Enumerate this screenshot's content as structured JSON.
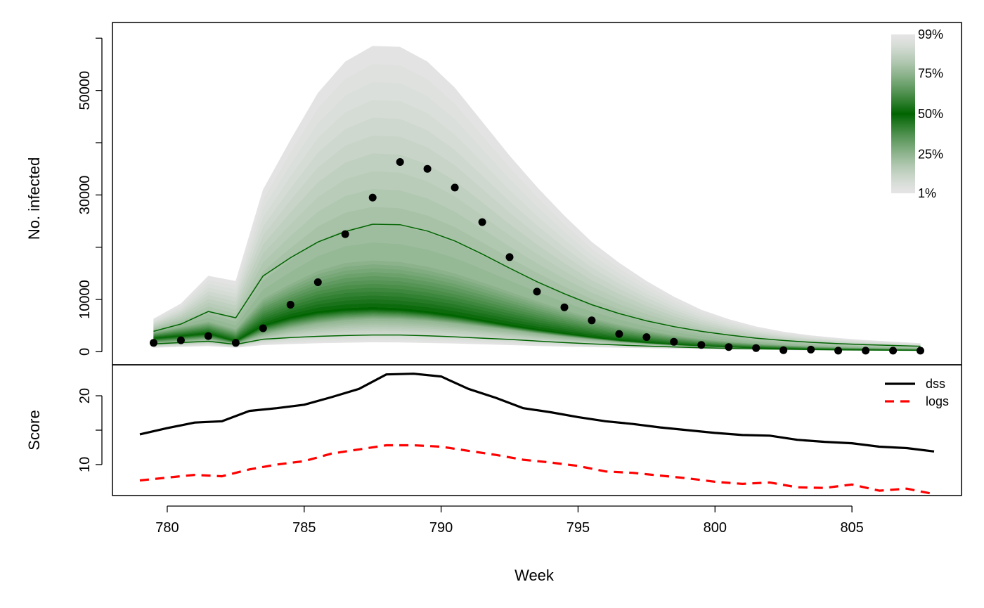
{
  "chart_data": [
    {
      "type": "area",
      "panel": "top",
      "ylabel": "No. infected",
      "xlim": [
        778,
        809
      ],
      "ylim": [
        -2500,
        63000
      ],
      "y_ticks": [
        0,
        10000,
        20000,
        30000,
        40000,
        50000,
        60000
      ],
      "y_tick_labels": [
        "0",
        "10000",
        "",
        "30000",
        "",
        "50000",
        ""
      ],
      "x": [
        779.5,
        780.5,
        781.5,
        782.5,
        783.5,
        784.5,
        785.5,
        786.5,
        787.5,
        788.5,
        789.5,
        790.5,
        791.5,
        792.5,
        793.5,
        794.5,
        795.5,
        796.5,
        797.5,
        798.5,
        799.5,
        800.5,
        801.5,
        802.5,
        803.5,
        804.5,
        805.5,
        806.5,
        807.5
      ],
      "fan": {
        "colors": [
          "#e4e4e4",
          "#006400"
        ],
        "q01": [
          800,
          950,
          1100,
          800,
          1300,
          1500,
          1650,
          1750,
          1850,
          1800,
          1700,
          1600,
          1450,
          1300,
          1150,
          1000,
          900,
          800,
          700,
          600,
          520,
          450,
          400,
          350,
          300,
          270,
          240,
          220,
          200
        ],
        "q25": [
          1600,
          2000,
          2400,
          1500,
          3300,
          4500,
          5400,
          6000,
          6300,
          6200,
          5900,
          5400,
          4800,
          4200,
          3500,
          2900,
          2400,
          1900,
          1550,
          1250,
          1000,
          820,
          680,
          560,
          470,
          400,
          340,
          290,
          250
        ],
        "q50": [
          2600,
          3000,
          3500,
          2000,
          5000,
          6500,
          7500,
          8000,
          8200,
          8000,
          7500,
          6800,
          5900,
          5000,
          4200,
          3500,
          2800,
          2200,
          1750,
          1400,
          1120,
          900,
          740,
          610,
          510,
          430,
          370,
          320,
          280
        ],
        "q75": [
          3800,
          4800,
          5800,
          4300,
          10200,
          13000,
          15500,
          17000,
          17500,
          17200,
          16300,
          15000,
          13300,
          11500,
          9700,
          8000,
          6500,
          5200,
          4100,
          3200,
          2500,
          2000,
          1600,
          1300,
          1050,
          900,
          780,
          680,
          600
        ],
        "q99": [
          6300,
          9200,
          14500,
          13500,
          31000,
          40500,
          49500,
          55500,
          58500,
          58300,
          55500,
          50500,
          44000,
          37500,
          31500,
          26000,
          21000,
          17000,
          13500,
          10500,
          8000,
          6200,
          4800,
          3800,
          3100,
          2600,
          2200,
          1900,
          1600
        ],
        "legend_labels": [
          "99%",
          "75%",
          "50%",
          "25%",
          "1%"
        ],
        "legend_levels": [
          0.99,
          0.75,
          0.5,
          0.25,
          0.01
        ]
      },
      "interval_lines": {
        "color": "#006400",
        "lower": [
          1500,
          1750,
          2000,
          1400,
          2400,
          2700,
          2950,
          3100,
          3200,
          3200,
          3050,
          2850,
          2600,
          2350,
          2050,
          1750,
          1500,
          1280,
          1080,
          910,
          770,
          650,
          560,
          480,
          420,
          370,
          330,
          300,
          270
        ],
        "upper": [
          3900,
          5300,
          7700,
          6500,
          14500,
          18000,
          21000,
          23000,
          24400,
          24300,
          23100,
          21200,
          18700,
          16000,
          13400,
          11100,
          9000,
          7300,
          5900,
          4800,
          3900,
          3200,
          2600,
          2150,
          1800,
          1550,
          1350,
          1200,
          1050
        ]
      },
      "observed": {
        "color": "#000000",
        "y": [
          1700,
          2200,
          3000,
          1700,
          4500,
          9000,
          13300,
          22500,
          29500,
          36300,
          35000,
          31400,
          24800,
          18100,
          11500,
          8500,
          6000,
          3400,
          2800,
          1900,
          1300,
          900,
          700,
          300,
          400,
          200,
          200,
          200,
          200,
          200
        ]
      }
    },
    {
      "type": "line",
      "panel": "bottom",
      "xlabel": "Week",
      "ylabel": "Score",
      "xlim": [
        778,
        809
      ],
      "ylim": [
        5.5,
        24.5
      ],
      "x_ticks": [
        780,
        785,
        790,
        795,
        800,
        805
      ],
      "x_tick_labels": [
        "780",
        "785",
        "790",
        "795",
        "800",
        "805"
      ],
      "y_ticks": [
        10,
        15,
        20
      ],
      "y_tick_labels": [
        "10",
        "",
        "20"
      ],
      "x": [
        779,
        780,
        781,
        782,
        783,
        784,
        785,
        786,
        787,
        788,
        789,
        790,
        791,
        792,
        793,
        794,
        795,
        796,
        797,
        798,
        799,
        800,
        801,
        802,
        803,
        804,
        805,
        806,
        807,
        808
      ],
      "series": [
        {
          "name": "dss",
          "color": "#000000",
          "dash": "solid",
          "values": [
            14.4,
            15.3,
            16.1,
            16.3,
            17.8,
            18.2,
            18.7,
            19.8,
            21.0,
            23.1,
            23.2,
            22.8,
            21.0,
            19.7,
            18.2,
            17.6,
            16.9,
            16.3,
            15.9,
            15.4,
            15.0,
            14.6,
            14.3,
            14.2,
            13.6,
            13.3,
            13.1,
            12.6,
            12.4,
            11.9
          ]
        },
        {
          "name": "logs",
          "color": "#ff0000",
          "dash": "dashed",
          "values": [
            7.7,
            8.1,
            8.5,
            8.3,
            9.3,
            10.0,
            10.5,
            11.6,
            12.2,
            12.8,
            12.8,
            12.6,
            12.0,
            11.4,
            10.7,
            10.3,
            9.8,
            9.0,
            8.8,
            8.4,
            8.0,
            7.5,
            7.2,
            7.4,
            6.7,
            6.6,
            7.1,
            6.2,
            6.5,
            5.7
          ]
        }
      ],
      "legend": {
        "position": "top-right",
        "labels": [
          "dss",
          "logs"
        ]
      }
    }
  ]
}
